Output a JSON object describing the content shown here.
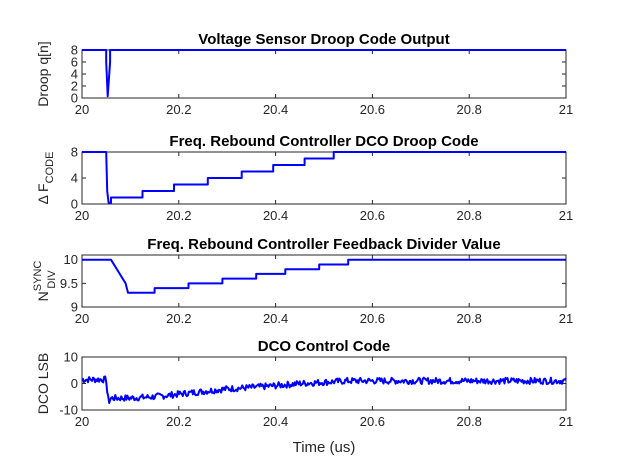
{
  "figure": {
    "xlabel": "Time (us)"
  },
  "chart_data": [
    {
      "type": "line",
      "title": "Voltage Sensor Droop Code Output",
      "ylabel": "Droop q[n]",
      "ylabel_sub": "",
      "ylabel_sup": "",
      "xlim": [
        20,
        21
      ],
      "ylim": [
        0,
        8
      ],
      "xticks": [
        "20",
        "20.2",
        "20.4",
        "20.6",
        "20.8",
        "21"
      ],
      "yticks": [
        "0",
        "2",
        "4",
        "6",
        "8"
      ],
      "color": "#0000ff",
      "series": [
        {
          "x": [
            20,
            20.05,
            20.05,
            20.053,
            20.053,
            20.058,
            20.058,
            21
          ],
          "y": [
            8,
            8,
            6,
            0.3,
            0.3,
            6,
            8,
            8
          ]
        }
      ]
    },
    {
      "type": "line",
      "title": "Freq. Rebound Controller DCO Droop Code",
      "ylabel": "Δ F",
      "ylabel_sub": "CODE",
      "ylabel_sup": "",
      "xlim": [
        20,
        21
      ],
      "ylim": [
        0,
        8
      ],
      "xticks": [
        "20",
        "20.2",
        "20.4",
        "20.6",
        "20.8",
        "21"
      ],
      "yticks": [
        "0",
        "4",
        "8"
      ],
      "color": "#0000ff",
      "series": [
        {
          "x": [
            20,
            20.05,
            20.052,
            20.055,
            20.06,
            20.06,
            20.125,
            20.125,
            20.19,
            20.19,
            20.26,
            20.26,
            20.33,
            20.33,
            20.395,
            20.395,
            20.46,
            20.46,
            20.52,
            20.52,
            21
          ],
          "y": [
            8,
            8,
            2,
            0.2,
            0.2,
            1,
            1,
            2,
            2,
            3,
            3,
            4,
            4,
            5,
            5,
            6,
            6,
            7,
            7,
            8,
            8
          ]
        }
      ]
    },
    {
      "type": "line",
      "title": "Freq. Rebound Controller Feedback Divider Value",
      "ylabel": "N",
      "ylabel_sub": "DIV",
      "ylabel_sup": "SYNC",
      "xlim": [
        20,
        21
      ],
      "ylim": [
        9,
        10.1
      ],
      "xticks": [
        "20",
        "20.2",
        "20.4",
        "20.6",
        "20.8",
        "21"
      ],
      "yticks": [
        "9",
        "9.5",
        "10"
      ],
      "color": "#0000ff",
      "series": [
        {
          "x": [
            20,
            20.06,
            20.09,
            20.095,
            20.15,
            20.15,
            20.22,
            20.22,
            20.29,
            20.29,
            20.36,
            20.36,
            20.42,
            20.42,
            20.49,
            20.49,
            20.55,
            20.55,
            21
          ],
          "y": [
            10,
            10,
            9.5,
            9.3,
            9.3,
            9.4,
            9.4,
            9.5,
            9.5,
            9.6,
            9.6,
            9.7,
            9.7,
            9.8,
            9.8,
            9.9,
            9.9,
            10,
            10
          ]
        }
      ]
    },
    {
      "type": "line",
      "title": "DCO Control Code",
      "ylabel": "DCO LSB",
      "ylabel_sub": "",
      "ylabel_sup": "",
      "xlim": [
        20,
        21
      ],
      "ylim": [
        -10,
        10
      ],
      "xticks": [
        "20",
        "20.2",
        "20.4",
        "20.6",
        "20.8",
        "21"
      ],
      "yticks": [
        "-10",
        "0",
        "10"
      ],
      "color": "#0000ff",
      "noise_amplitude": 1.2,
      "series": [
        {
          "x": [
            20,
            20.05,
            20.052,
            20.055,
            20.06,
            20.1,
            20.15,
            20.2,
            20.25,
            20.3,
            20.35,
            20.4,
            20.45,
            20.5,
            20.55,
            21
          ],
          "y": [
            1.5,
            1.5,
            -3,
            -7,
            -5.5,
            -5.5,
            -5,
            -4,
            -3,
            -2,
            -1.5,
            -0.8,
            0,
            0.5,
            1,
            1
          ]
        }
      ]
    }
  ]
}
